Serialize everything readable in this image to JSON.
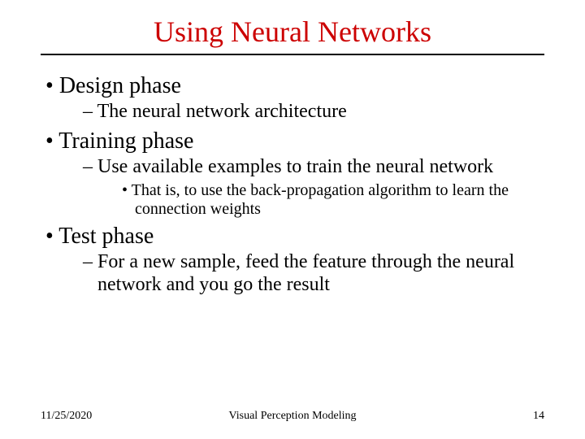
{
  "title": {
    "text": "Using Neural Networks",
    "color": "#cc0000",
    "fontsize": 36
  },
  "rule_color": "#000000",
  "body_color": "#000000",
  "bullets": [
    {
      "text": "Design phase",
      "children": [
        {
          "text": "The neural network architecture",
          "children": []
        }
      ]
    },
    {
      "text": "Training phase",
      "children": [
        {
          "text": "Use available examples to train the neural network",
          "children": [
            {
              "text": "That is, to use the back-propagation algorithm to learn the connection weights"
            }
          ]
        }
      ]
    },
    {
      "text": "Test phase",
      "children": [
        {
          "text": "For a new sample, feed the feature through the neural network and you go the result",
          "children": []
        }
      ]
    }
  ],
  "footer": {
    "date": "11/25/2020",
    "center": "Visual Perception Modeling",
    "page": "14",
    "fontsize": 14
  },
  "background_color": "#ffffff"
}
